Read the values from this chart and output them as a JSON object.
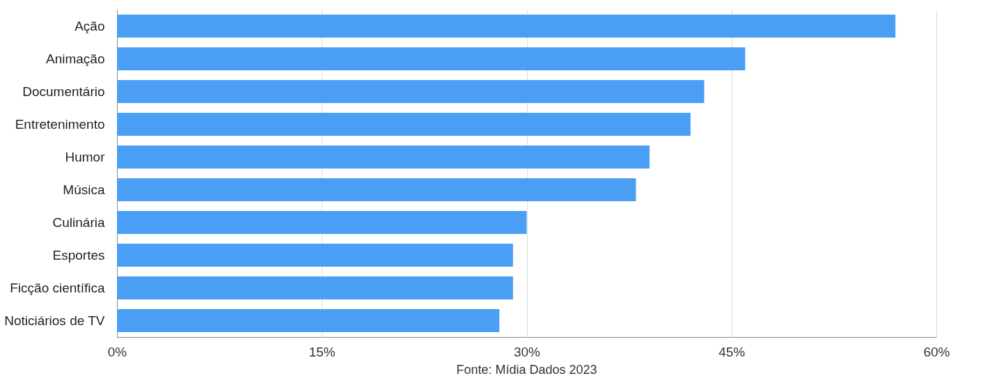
{
  "chart_data": {
    "type": "bar",
    "orientation": "horizontal",
    "categories": [
      "Ação",
      "Animação",
      "Documentário",
      "Entretenimento",
      "Humor",
      "Música",
      "Culinária",
      "Esportes",
      "Ficção científica",
      "Noticiários de TV"
    ],
    "values": [
      57,
      46,
      43,
      42,
      39,
      38,
      30,
      29,
      29,
      28
    ],
    "color": "#4a9ff5",
    "xlim": [
      0,
      60
    ],
    "xticks": [
      {
        "value": 0,
        "label": "0%"
      },
      {
        "value": 15,
        "label": "15%"
      },
      {
        "value": 30,
        "label": "30%"
      },
      {
        "value": 45,
        "label": "45%"
      },
      {
        "value": 60,
        "label": "60%"
      }
    ],
    "grid": "x",
    "annotations": [
      "Fonte: Mídia Dados 2023"
    ]
  }
}
